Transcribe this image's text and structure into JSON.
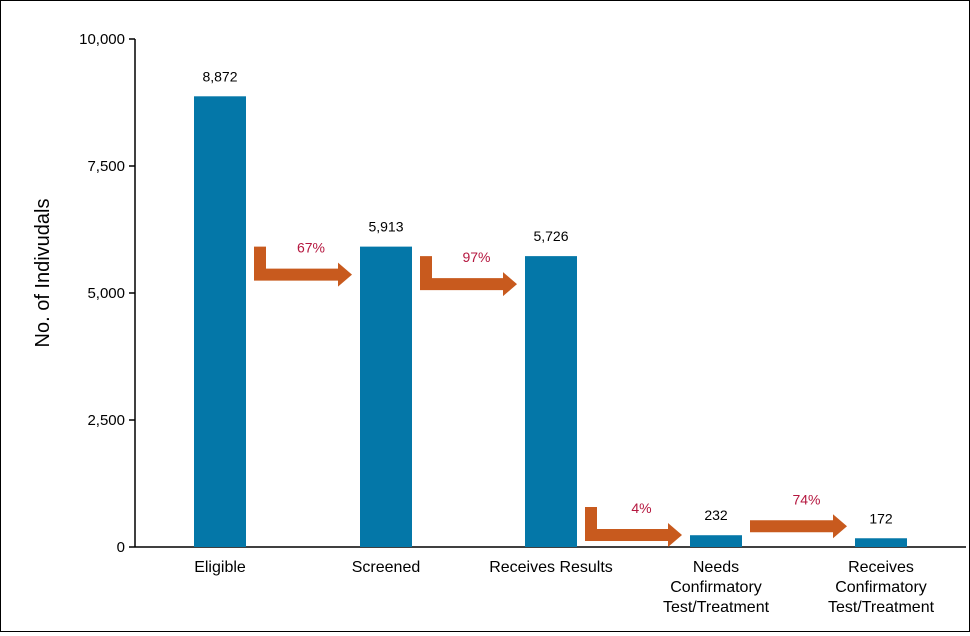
{
  "chart_data": {
    "type": "bar",
    "categories": [
      [
        "Eligible"
      ],
      [
        "Screened"
      ],
      [
        "Receives Results"
      ],
      [
        "Needs",
        "Confirmatory",
        "Test/Treatment"
      ],
      [
        "Receives",
        "Confirmatory",
        "Test/Treatment"
      ]
    ],
    "values": [
      8872,
      5913,
      5726,
      232,
      172
    ],
    "data_labels": [
      "8,872",
      "5,913",
      "5,726",
      "232",
      "172"
    ],
    "ylabel": "No. of Indivudals",
    "ylim": [
      0,
      10000
    ],
    "yticks": [
      0,
      2500,
      5000,
      7500,
      10000
    ],
    "ytick_labels": [
      "0",
      "2,500",
      "5,000",
      "7,500",
      "10,000"
    ],
    "transitions": [
      {
        "from": 0,
        "to": 1,
        "label": "67%"
      },
      {
        "from": 1,
        "to": 2,
        "label": "97%"
      },
      {
        "from": 2,
        "to": 3,
        "label": "4%"
      },
      {
        "from": 3,
        "to": 4,
        "label": "74%"
      }
    ],
    "grid": false,
    "colors": {
      "bar": "#0477a8",
      "arrow": "#c85a1e",
      "percent_text": "#b5173f",
      "text": "#000000"
    }
  }
}
